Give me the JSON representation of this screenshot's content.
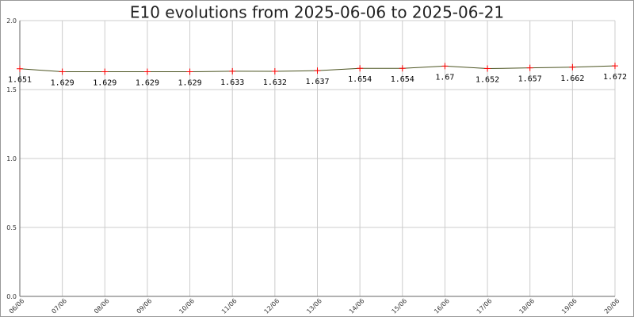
{
  "chart_data": {
    "type": "line",
    "title": "E10 evolutions from 2025-06-06 to 2025-06-21",
    "categories": [
      "06/06",
      "07/06",
      "08/06",
      "09/06",
      "10/06",
      "11/06",
      "12/06",
      "13/06",
      "14/06",
      "15/06",
      "16/06",
      "17/06",
      "18/06",
      "19/06",
      "20/06"
    ],
    "values": [
      1.651,
      1.629,
      1.629,
      1.629,
      1.629,
      1.633,
      1.632,
      1.637,
      1.654,
      1.654,
      1.67,
      1.652,
      1.657,
      1.662,
      1.672
    ],
    "color": "#4b5320",
    "marker_color": "#ff0000",
    "ylim": [
      0,
      2
    ],
    "yticks": [
      {
        "value": 0,
        "label": "0.0"
      },
      {
        "value": 0.5,
        "label": "0.5"
      },
      {
        "value": 1,
        "label": "1.0"
      },
      {
        "value": 1.5,
        "label": "1.5"
      },
      {
        "value": 2,
        "label": "2.0"
      }
    ],
    "grid": true
  }
}
